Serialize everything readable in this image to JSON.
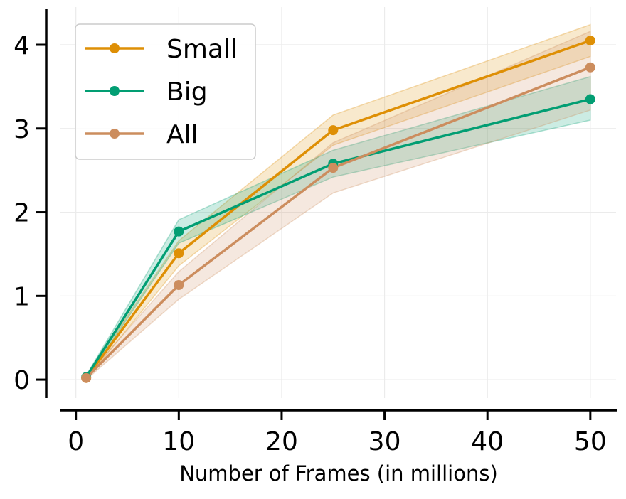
{
  "chart_data": {
    "type": "line",
    "title": "",
    "xlabel": "Number of Frames (in millions)",
    "ylabel": "",
    "xlim": [
      -1.5,
      52.5
    ],
    "ylim": [
      -0.22,
      4.45
    ],
    "xticks": [
      0,
      10,
      20,
      30,
      40,
      50
    ],
    "yticks": [
      0,
      1,
      2,
      3,
      4
    ],
    "grid": true,
    "legend_position": "top-left",
    "x": [
      1,
      10,
      25,
      50
    ],
    "series": [
      {
        "name": "Small",
        "color": "#de8f05",
        "values": [
          0.02,
          1.51,
          2.98,
          4.05
        ],
        "lower": [
          0.0,
          1.36,
          2.8,
          3.86
        ],
        "upper": [
          0.04,
          1.66,
          3.16,
          4.24
        ]
      },
      {
        "name": "Big",
        "color": "#029e73",
        "values": [
          0.03,
          1.77,
          2.58,
          3.35
        ],
        "lower": [
          0.01,
          1.63,
          2.42,
          3.1
        ],
        "upper": [
          0.05,
          1.91,
          2.74,
          3.62
        ]
      },
      {
        "name": "All",
        "color": "#cc8d5e",
        "values": [
          0.02,
          1.13,
          2.53,
          3.73
        ],
        "lower": [
          0.0,
          0.96,
          2.23,
          3.22
        ],
        "upper": [
          0.04,
          1.29,
          2.83,
          4.16
        ]
      }
    ]
  }
}
